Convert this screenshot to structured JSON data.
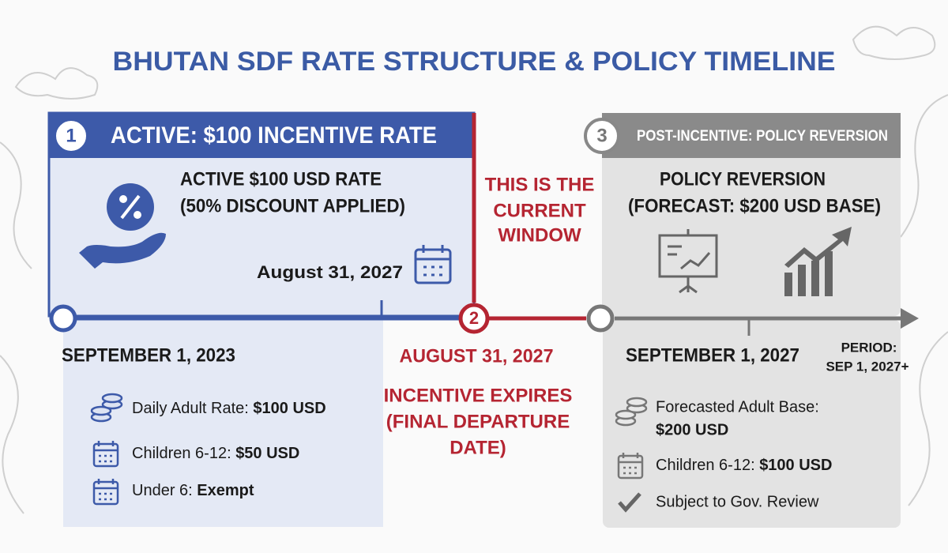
{
  "title": "BHUTAN SDF RATE STRUCTURE & POLICY TIMELINE",
  "phases": [
    {
      "number": "1",
      "header": "ACTIVE: $100 INCENTIVE RATE",
      "headline": [
        "ACTIVE $100 USD RATE",
        "(50% DISCOUNT APPLIED)"
      ],
      "date_badge": "August 31, 2027",
      "start_date": "SEPTEMBER 1, 2023",
      "items": [
        {
          "label": "Daily Adult Rate: ",
          "value": "$100 USD"
        },
        {
          "label": "Children 6-12: ",
          "value": "$50 USD"
        },
        {
          "label": "Under 6: ",
          "value": "Exempt"
        }
      ]
    },
    {
      "number": "2",
      "callout": [
        "THIS IS THE",
        "CURRENT",
        "WINDOW"
      ],
      "date": "AUGUST 31, 2027",
      "note": [
        "INCENTIVE EXPIRES",
        "(FINAL DEPARTURE",
        "DATE)"
      ]
    },
    {
      "number": "3",
      "header": "POST-INCENTIVE: POLICY REVERSION",
      "headline": [
        "POLICY REVERSION",
        "(FORECAST: $200 USD BASE)"
      ],
      "start_date": "SEPTEMBER 1, 2027",
      "period": [
        "PERIOD:",
        "SEP 1, 2027+"
      ],
      "items": [
        {
          "label": "Forecasted Adult Base:",
          "value": "$200 USD"
        },
        {
          "label": "Children 6-12: ",
          "value": "$100 USD"
        },
        {
          "label": "Subject to Gov. Review"
        }
      ]
    }
  ]
}
